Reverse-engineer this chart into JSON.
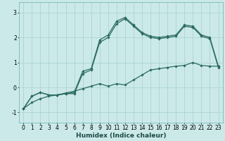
{
  "xlabel": "Humidex (Indice chaleur)",
  "bg_color": "#cce9e9",
  "grid_color": "#aad4d4",
  "line_color": "#2a6b60",
  "xlim": [
    -0.5,
    23.5
  ],
  "ylim": [
    -1.4,
    3.4
  ],
  "xtick_labels": [
    "0",
    "1",
    "2",
    "3",
    "4",
    "5",
    "6",
    "7",
    "8",
    "9",
    "10",
    "11",
    "12",
    "13",
    "14",
    "15",
    "16",
    "17",
    "18",
    "19",
    "20",
    "21",
    "22",
    "23"
  ],
  "xticks": [
    0,
    1,
    2,
    3,
    4,
    5,
    6,
    7,
    8,
    9,
    10,
    11,
    12,
    13,
    14,
    15,
    16,
    17,
    18,
    19,
    20,
    21,
    22,
    23
  ],
  "yticks": [
    -1,
    0,
    1,
    2,
    3
  ],
  "series1_x": [
    0,
    1,
    2,
    3,
    4,
    5,
    6,
    7,
    8,
    9,
    10,
    11,
    12,
    13,
    14,
    15,
    16,
    17,
    18,
    19,
    20,
    21,
    22,
    23
  ],
  "series1_y": [
    -0.85,
    -0.35,
    -0.2,
    -0.3,
    -0.3,
    -0.25,
    -0.2,
    0.65,
    0.75,
    1.9,
    2.1,
    2.65,
    2.8,
    2.5,
    2.2,
    2.05,
    2.0,
    2.05,
    2.1,
    2.5,
    2.45,
    2.1,
    2.0,
    0.85
  ],
  "series2_x": [
    0,
    1,
    2,
    3,
    4,
    5,
    6,
    7,
    8,
    9,
    10,
    11,
    12,
    13,
    14,
    15,
    16,
    17,
    18,
    19,
    20,
    21,
    22,
    23
  ],
  "series2_y": [
    -0.85,
    -0.35,
    -0.2,
    -0.3,
    -0.3,
    -0.25,
    -0.25,
    0.55,
    0.7,
    1.8,
    2.0,
    2.55,
    2.75,
    2.45,
    2.15,
    2.0,
    1.95,
    2.0,
    2.05,
    2.45,
    2.4,
    2.05,
    1.95,
    0.8
  ],
  "series3_x": [
    0,
    1,
    2,
    3,
    4,
    5,
    6,
    7,
    8,
    9,
    10,
    11,
    12,
    13,
    14,
    15,
    16,
    17,
    18,
    19,
    20,
    21,
    22,
    23
  ],
  "series3_y": [
    -0.85,
    -0.6,
    -0.45,
    -0.35,
    -0.3,
    -0.22,
    -0.15,
    -0.05,
    0.05,
    0.15,
    0.05,
    0.15,
    0.1,
    0.3,
    0.5,
    0.7,
    0.75,
    0.8,
    0.85,
    0.88,
    1.0,
    0.88,
    0.85,
    0.85
  ],
  "xlabel_fontsize": 6.5,
  "tick_fontsize": 5.5
}
